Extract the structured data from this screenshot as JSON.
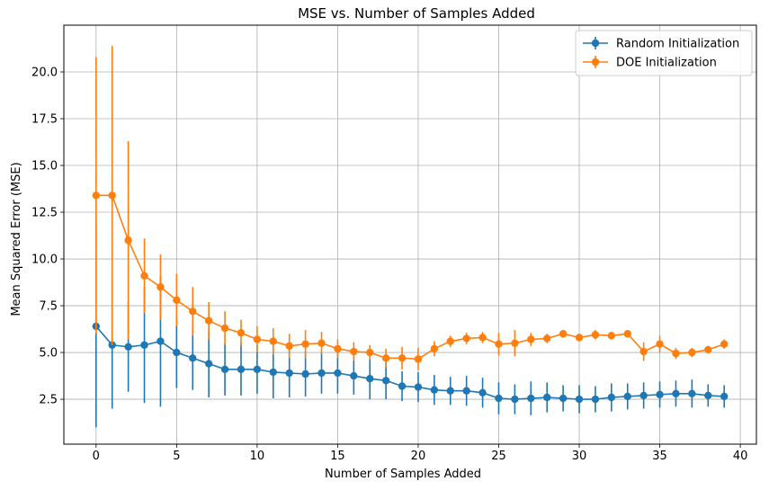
{
  "chart_data": {
    "type": "line",
    "title": "MSE vs. Number of Samples Added",
    "xlabel": "Number of Samples Added",
    "ylabel": "Mean Squared Error (MSE)",
    "xlim": [
      -2,
      41
    ],
    "ylim": [
      0.1,
      22.5
    ],
    "xticks": [
      0,
      5,
      10,
      15,
      20,
      25,
      30,
      35,
      40
    ],
    "yticks": [
      2.5,
      5.0,
      7.5,
      10.0,
      12.5,
      15.0,
      17.5,
      20.0
    ],
    "ytick_labels": [
      "2.5",
      "5.0",
      "7.5",
      "10.0",
      "12.5",
      "15.0",
      "17.5",
      "20.0"
    ],
    "grid": true,
    "legend_position": "top-right",
    "x": [
      0,
      1,
      2,
      3,
      4,
      5,
      6,
      7,
      8,
      9,
      10,
      11,
      12,
      13,
      14,
      15,
      16,
      17,
      18,
      19,
      20,
      21,
      22,
      23,
      24,
      25,
      26,
      27,
      28,
      29,
      30,
      31,
      32,
      33,
      34,
      35,
      36,
      37,
      38,
      39
    ],
    "series": [
      {
        "name": "Random Initialization",
        "color": "#1f77b4",
        "values": [
          6.4,
          5.4,
          5.3,
          5.4,
          5.6,
          5.0,
          4.7,
          4.4,
          4.1,
          4.1,
          4.1,
          3.95,
          3.9,
          3.85,
          3.9,
          3.9,
          3.75,
          3.6,
          3.5,
          3.2,
          3.15,
          3.0,
          2.95,
          2.95,
          2.85,
          2.55,
          2.5,
          2.55,
          2.6,
          2.55,
          2.5,
          2.5,
          2.6,
          2.65,
          2.7,
          2.75,
          2.8,
          2.8,
          2.7,
          2.65
        ],
        "errors": [
          5.4,
          3.4,
          2.4,
          3.1,
          3.5,
          1.9,
          1.7,
          1.8,
          1.4,
          1.4,
          1.3,
          1.4,
          1.3,
          1.2,
          1.1,
          1.1,
          1.0,
          1.1,
          1.0,
          0.8,
          0.8,
          0.8,
          0.75,
          0.8,
          0.8,
          0.85,
          0.8,
          0.9,
          0.8,
          0.7,
          0.75,
          0.7,
          0.75,
          0.7,
          0.7,
          0.7,
          0.7,
          0.75,
          0.6,
          0.6
        ]
      },
      {
        "name": "DOE Initialization",
        "color": "#ff7f0e",
        "values": [
          13.4,
          13.4,
          11.0,
          9.1,
          8.5,
          7.8,
          7.2,
          6.7,
          6.3,
          6.05,
          5.7,
          5.6,
          5.35,
          5.45,
          5.5,
          5.2,
          5.05,
          5.0,
          4.7,
          4.7,
          4.65,
          5.2,
          5.6,
          5.75,
          5.8,
          5.45,
          5.5,
          5.7,
          5.75,
          6.0,
          5.8,
          5.95,
          5.9,
          6.0,
          5.05,
          5.45,
          4.95,
          5.0,
          5.15,
          5.45
        ],
        "errors": [
          7.4,
          8.0,
          5.3,
          2.0,
          1.75,
          1.4,
          1.3,
          1.0,
          0.9,
          0.7,
          0.7,
          0.7,
          0.65,
          0.75,
          0.6,
          0.5,
          0.5,
          0.4,
          0.5,
          0.6,
          0.6,
          0.4,
          0.3,
          0.3,
          0.3,
          0.6,
          0.7,
          0.35,
          0.25,
          0.2,
          0.2,
          0.25,
          0.2,
          0.2,
          0.5,
          0.45,
          0.3,
          0.25,
          0.2,
          0.25
        ]
      }
    ]
  }
}
